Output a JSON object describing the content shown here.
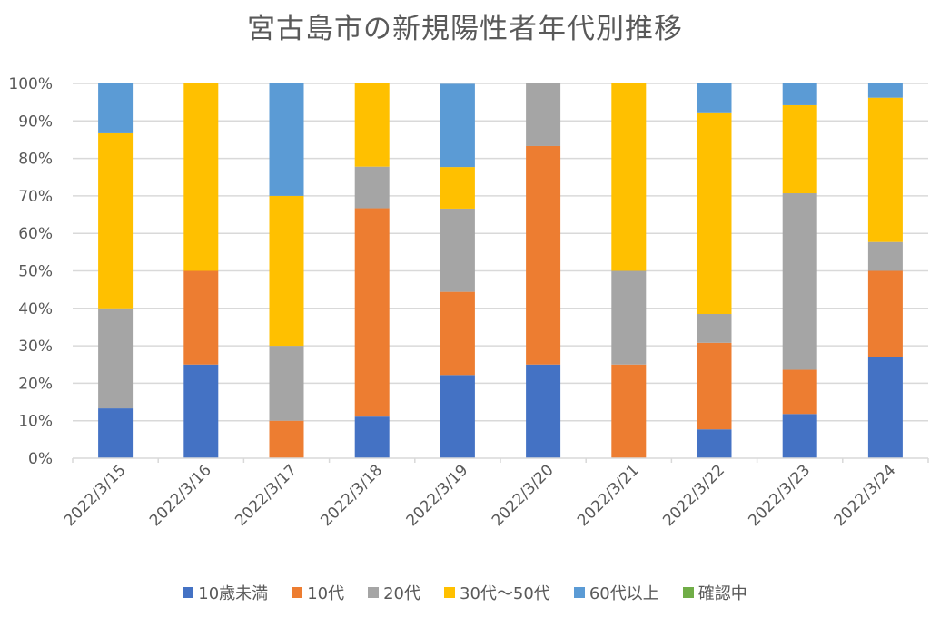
{
  "chart_data": {
    "type": "bar",
    "stacked": "percent",
    "title": "宮古島市の新規陽性者年代別推移",
    "xlabel": "",
    "ylabel": "",
    "ylim": [
      0,
      100
    ],
    "ytick_labels": [
      "0%",
      "10%",
      "20%",
      "30%",
      "40%",
      "50%",
      "60%",
      "70%",
      "80%",
      "90%",
      "100%"
    ],
    "grid": true,
    "legend_position": "bottom",
    "categories": [
      "2022/3/15",
      "2022/3/16",
      "2022/3/17",
      "2022/3/18",
      "2022/3/19",
      "2022/3/20",
      "2022/3/21",
      "2022/3/22",
      "2022/3/23",
      "2022/3/24"
    ],
    "series": [
      {
        "name": "10歳未満",
        "color": "#4472C4",
        "values": [
          13.3,
          25.0,
          0,
          11.1,
          22.2,
          25.0,
          0,
          7.7,
          11.8,
          26.9
        ]
      },
      {
        "name": "10代",
        "color": "#ED7D31",
        "values": [
          0,
          25.0,
          10.0,
          55.6,
          22.2,
          58.3,
          25.0,
          23.1,
          11.8,
          23.1
        ]
      },
      {
        "name": "20代",
        "color": "#A5A5A5",
        "values": [
          26.7,
          0,
          20.0,
          11.1,
          22.2,
          16.7,
          25.0,
          7.7,
          47.1,
          7.7
        ]
      },
      {
        "name": "30代～50代",
        "color": "#FFC000",
        "values": [
          46.7,
          50.0,
          40.0,
          22.2,
          11.1,
          0,
          50.0,
          53.8,
          23.5,
          38.5
        ]
      },
      {
        "name": "60代以上",
        "color": "#5B9BD5",
        "values": [
          13.3,
          0,
          30.0,
          0,
          22.2,
          0,
          0,
          7.7,
          5.9,
          3.8
        ]
      },
      {
        "name": "確認中",
        "color": "#70AD47",
        "values": [
          0,
          0,
          0,
          0,
          0,
          0,
          0,
          0,
          0,
          0
        ]
      }
    ]
  }
}
